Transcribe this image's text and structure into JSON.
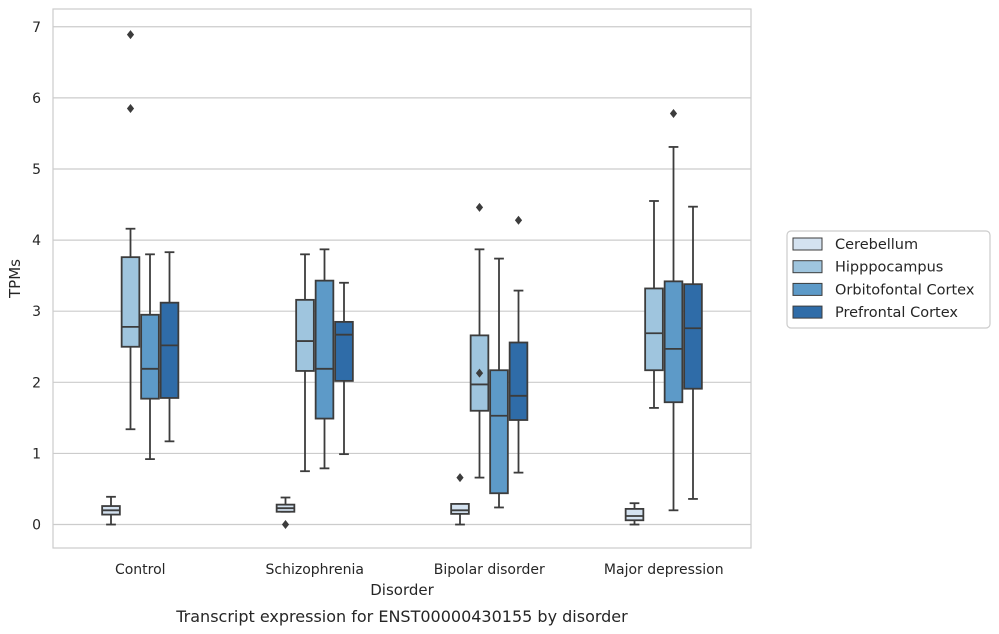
{
  "caption": "Transcript expression for ENST00000430155 by disorder",
  "chart_data": {
    "type": "box",
    "xlabel": "Disorder",
    "ylabel": "TPMs",
    "ylim": [
      -0.33,
      7.25
    ],
    "yticks": [
      0,
      1,
      2,
      3,
      4,
      5,
      6,
      7
    ],
    "grid": true,
    "legend_position": "right",
    "categories": [
      "Control",
      "Schizophrenia",
      "Bipolar disorder",
      "Major depression"
    ],
    "series": [
      {
        "name": "Cerebellum",
        "color": "#d4e2f0",
        "boxes": [
          {
            "whislo": 0.0,
            "q1": 0.14,
            "med": 0.2,
            "q3": 0.26,
            "whishi": 0.39,
            "fliers": []
          },
          {
            "whislo": 0.18,
            "q1": 0.18,
            "med": 0.23,
            "q3": 0.28,
            "whishi": 0.38,
            "fliers": [
              0.0
            ]
          },
          {
            "whislo": 0.0,
            "q1": 0.15,
            "med": 0.2,
            "q3": 0.29,
            "whishi": 0.29,
            "fliers": [
              0.66
            ]
          },
          {
            "whislo": 0.0,
            "q1": 0.06,
            "med": 0.12,
            "q3": 0.22,
            "whishi": 0.3,
            "fliers": []
          }
        ]
      },
      {
        "name": "Hipppocampus",
        "color": "#9fc5de",
        "boxes": [
          {
            "whislo": 1.34,
            "q1": 2.5,
            "med": 2.78,
            "q3": 3.76,
            "whishi": 4.16,
            "fliers": [
              5.85,
              6.89
            ]
          },
          {
            "whislo": 0.75,
            "q1": 2.16,
            "med": 2.58,
            "q3": 3.16,
            "whishi": 3.8,
            "fliers": []
          },
          {
            "whislo": 0.66,
            "q1": 1.6,
            "med": 1.97,
            "q3": 2.66,
            "whishi": 3.87,
            "fliers": [
              2.13,
              4.46
            ]
          },
          {
            "whislo": 1.64,
            "q1": 2.17,
            "med": 2.69,
            "q3": 3.32,
            "whishi": 4.55,
            "fliers": []
          }
        ]
      },
      {
        "name": "Orbitofontal Cortex",
        "color": "#5d9ac8",
        "boxes": [
          {
            "whislo": 0.92,
            "q1": 1.77,
            "med": 2.19,
            "q3": 2.95,
            "whishi": 3.8,
            "fliers": []
          },
          {
            "whislo": 0.79,
            "q1": 1.49,
            "med": 2.19,
            "q3": 3.43,
            "whishi": 3.87,
            "fliers": []
          },
          {
            "whislo": 0.24,
            "q1": 0.44,
            "med": 1.53,
            "q3": 2.17,
            "whishi": 3.74,
            "fliers": []
          },
          {
            "whislo": 0.2,
            "q1": 1.72,
            "med": 2.47,
            "q3": 3.42,
            "whishi": 5.31,
            "fliers": [
              5.78
            ]
          }
        ]
      },
      {
        "name": "Prefrontal Cortex",
        "color": "#2f6ca8",
        "boxes": [
          {
            "whislo": 1.17,
            "q1": 1.78,
            "med": 2.52,
            "q3": 3.12,
            "whishi": 3.83,
            "fliers": []
          },
          {
            "whislo": 0.99,
            "q1": 2.02,
            "med": 2.67,
            "q3": 2.85,
            "whishi": 3.4,
            "fliers": []
          },
          {
            "whislo": 0.73,
            "q1": 1.47,
            "med": 1.81,
            "q3": 2.56,
            "whishi": 3.29,
            "fliers": [
              4.28
            ]
          },
          {
            "whislo": 0.36,
            "q1": 1.91,
            "med": 2.76,
            "q3": 3.38,
            "whishi": 4.47,
            "fliers": []
          }
        ]
      }
    ]
  }
}
